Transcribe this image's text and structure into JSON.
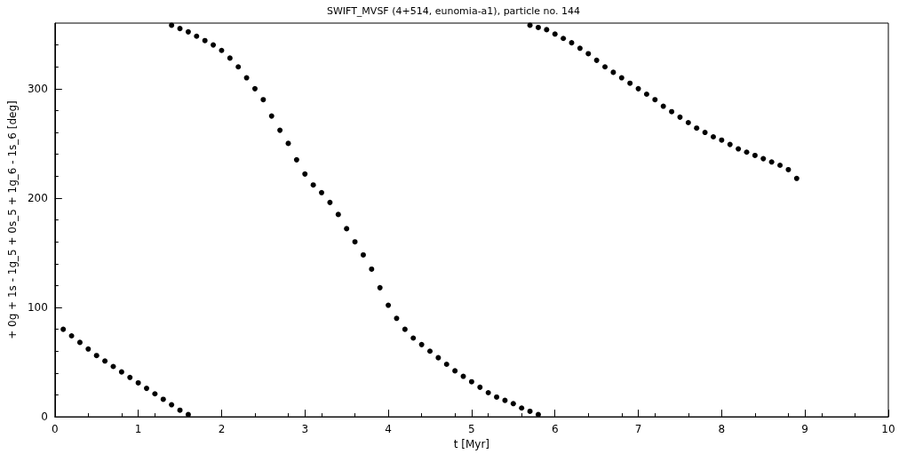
{
  "chart_data": {
    "type": "scatter",
    "title": "SWIFT_MVSF (4+514, eunomia-a1), particle no. 144",
    "xlabel": "t [Myr]",
    "ylabel": "+ 0g + 1s - 1g_5 + 0s_5 + 1g_6 - 1s_6 [deg]",
    "xlim": [
      0,
      10
    ],
    "xticks": [
      0,
      1,
      2,
      3,
      4,
      5,
      6,
      7,
      8,
      9,
      10
    ],
    "ylim": [
      0,
      360
    ],
    "yticks": [
      0,
      100,
      200,
      300
    ],
    "grid": false,
    "marker": "circle",
    "series": [
      {
        "color": "#000000",
        "x": [
          0.1,
          0.2,
          0.3,
          0.4,
          0.5,
          0.6,
          0.7,
          0.8,
          0.9,
          1.0,
          1.1,
          1.2,
          1.3,
          1.4,
          1.5,
          1.6
        ],
        "values": [
          80,
          74,
          68,
          62,
          56,
          51,
          46,
          41,
          36,
          31,
          26,
          21,
          16,
          11,
          6,
          2
        ]
      },
      {
        "color": "#000000",
        "x": [
          1.4,
          1.5,
          1.6,
          1.7,
          1.8,
          1.9,
          2.0,
          2.1,
          2.2,
          2.3,
          2.4,
          2.5,
          2.6,
          2.7,
          2.8,
          2.9,
          3.0,
          3.1,
          3.2,
          3.3,
          3.4,
          3.5,
          3.6,
          3.7,
          3.8,
          3.9,
          4.0,
          4.1,
          4.2,
          4.3,
          4.4,
          4.5,
          4.6,
          4.7,
          4.8,
          4.9,
          5.0,
          5.1,
          5.2,
          5.3,
          5.4,
          5.5,
          5.6,
          5.7,
          5.8
        ],
        "values": [
          358,
          355,
          352,
          348,
          344,
          340,
          335,
          328,
          320,
          310,
          300,
          290,
          275,
          262,
          250,
          235,
          222,
          212,
          205,
          196,
          185,
          172,
          160,
          148,
          135,
          118,
          102,
          90,
          80,
          72,
          66,
          60,
          54,
          48,
          42,
          37,
          32,
          27,
          22,
          18,
          15,
          12,
          8,
          5,
          2
        ]
      },
      {
        "color": "#000000",
        "x": [
          5.7,
          5.8,
          5.9,
          6.0,
          6.1,
          6.2,
          6.3,
          6.4,
          6.5,
          6.6,
          6.7,
          6.8,
          6.9,
          7.0,
          7.1,
          7.2,
          7.3,
          7.4,
          7.5,
          7.6,
          7.7,
          7.8,
          7.9,
          8.0,
          8.1,
          8.2,
          8.3,
          8.4,
          8.5,
          8.6,
          8.7,
          8.8,
          8.9
        ],
        "values": [
          358,
          356,
          354,
          350,
          346,
          342,
          337,
          332,
          326,
          320,
          315,
          310,
          305,
          300,
          295,
          290,
          284,
          279,
          274,
          269,
          264,
          260,
          256,
          253,
          249,
          245,
          242,
          239,
          236,
          233,
          230,
          226,
          218
        ]
      }
    ]
  }
}
